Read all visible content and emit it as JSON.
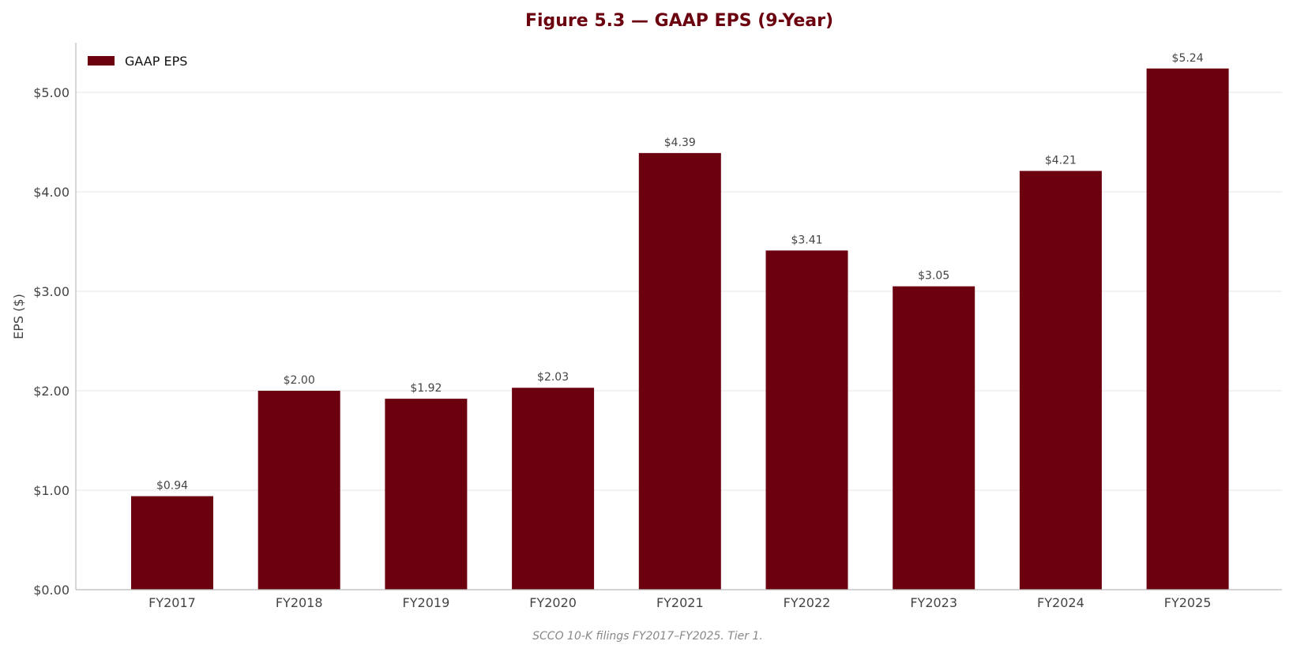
{
  "colors": {
    "bar": "#6b000f",
    "title": "#6b000f",
    "grid": "#e6e6e6",
    "axis": "#bbbbbb"
  },
  "chart_data": {
    "type": "bar",
    "title": "Figure 5.3 — GAAP EPS (9-Year)",
    "xlabel": "",
    "ylabel": "EPS ($)",
    "ylim": [
      0,
      5.5
    ],
    "yticks": [
      0,
      1,
      2,
      3,
      4,
      5
    ],
    "ytick_labels": [
      "$0.00",
      "$1.00",
      "$2.00",
      "$3.00",
      "$4.00",
      "$5.00"
    ],
    "categories": [
      "FY2017",
      "FY2018",
      "FY2019",
      "FY2020",
      "FY2021",
      "FY2022",
      "FY2023",
      "FY2024",
      "FY2025"
    ],
    "series": [
      {
        "name": "GAAP EPS",
        "values": [
          0.94,
          2.0,
          1.92,
          2.03,
          4.39,
          3.41,
          3.05,
          4.21,
          5.24
        ],
        "value_labels": [
          "$0.94",
          "$2.00",
          "$1.92",
          "$2.03",
          "$4.39",
          "$3.41",
          "$3.05",
          "$4.21",
          "$5.24"
        ]
      }
    ],
    "grid": "horizontal",
    "legend_position": "top-left",
    "source_note": "SCCO 10-K filings FY2017–FY2025. Tier 1."
  }
}
